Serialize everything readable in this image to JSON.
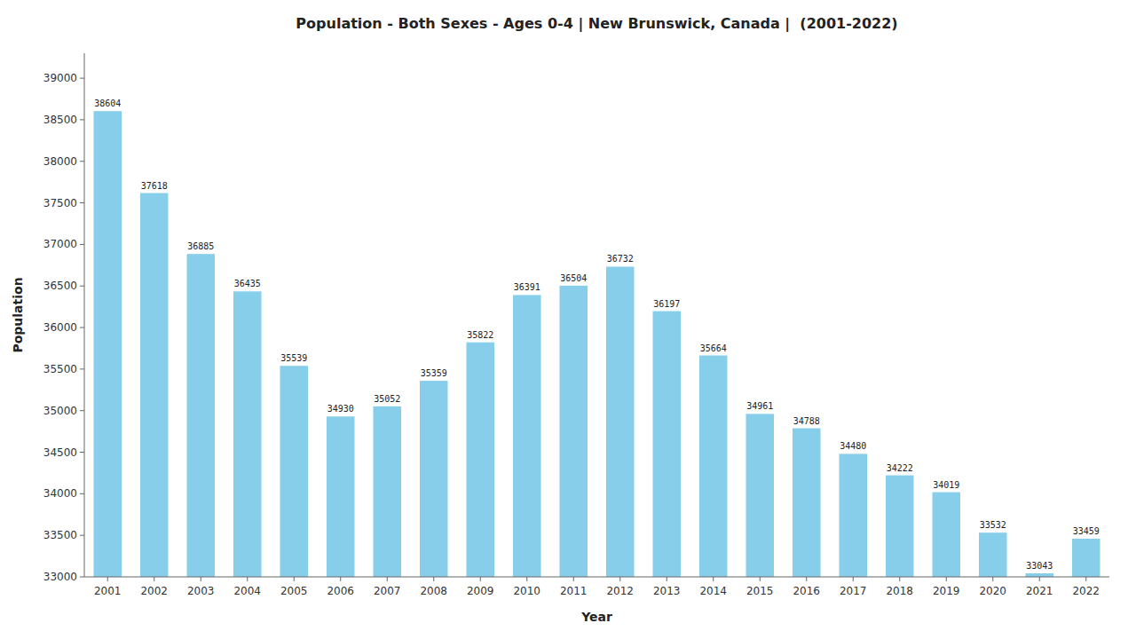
{
  "chart_data": {
    "type": "bar",
    "title": "Population - Both Sexes - Ages 0-4 | New Brunswick, Canada |  (2001-2022)",
    "xlabel": "Year",
    "ylabel": "Population",
    "categories": [
      "2001",
      "2002",
      "2003",
      "2004",
      "2005",
      "2006",
      "2007",
      "2008",
      "2009",
      "2010",
      "2011",
      "2012",
      "2013",
      "2014",
      "2015",
      "2016",
      "2017",
      "2018",
      "2019",
      "2020",
      "2021",
      "2022"
    ],
    "values": [
      38604,
      37618,
      36885,
      36435,
      35539,
      34930,
      35052,
      35359,
      35822,
      36391,
      36504,
      36732,
      36197,
      35664,
      34961,
      34788,
      34480,
      34222,
      34019,
      33532,
      33043,
      33459
    ],
    "color": "#87CEEB",
    "ylim": [
      33000,
      39300
    ],
    "yticks": [
      33000,
      33500,
      34000,
      34500,
      35000,
      35500,
      36000,
      36500,
      37000,
      37500,
      38000,
      38500,
      39000
    ],
    "grid": false,
    "data_labels": true
  }
}
